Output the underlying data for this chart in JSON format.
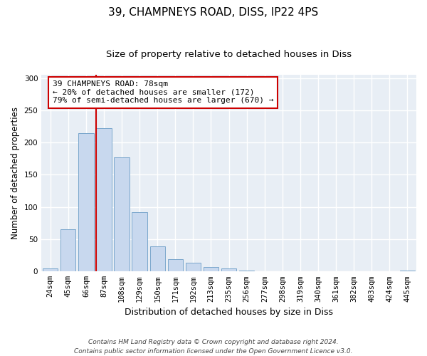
{
  "title": "39, CHAMPNEYS ROAD, DISS, IP22 4PS",
  "subtitle": "Size of property relative to detached houses in Diss",
  "xlabel": "Distribution of detached houses by size in Diss",
  "ylabel": "Number of detached properties",
  "bar_labels": [
    "24sqm",
    "45sqm",
    "66sqm",
    "87sqm",
    "108sqm",
    "129sqm",
    "150sqm",
    "171sqm",
    "192sqm",
    "213sqm",
    "235sqm",
    "256sqm",
    "277sqm",
    "298sqm",
    "319sqm",
    "340sqm",
    "361sqm",
    "382sqm",
    "403sqm",
    "424sqm",
    "445sqm"
  ],
  "bar_values": [
    5,
    65,
    215,
    222,
    177,
    92,
    39,
    19,
    14,
    7,
    5,
    1,
    0,
    0,
    0,
    0,
    0,
    0,
    0,
    0,
    1
  ],
  "bar_color": "#c8d8ee",
  "bar_edge_color": "#7ba7cc",
  "vline_color": "#cc0000",
  "annotation_text": "39 CHAMPNEYS ROAD: 78sqm\n← 20% of detached houses are smaller (172)\n79% of semi-detached houses are larger (670) →",
  "annotation_box_color": "#ffffff",
  "annotation_box_edge": "#cc0000",
  "ylim": [
    0,
    305
  ],
  "yticks": [
    0,
    50,
    100,
    150,
    200,
    250,
    300
  ],
  "background_color": "#ffffff",
  "plot_bg_color": "#e8eef5",
  "footer_text": "Contains HM Land Registry data © Crown copyright and database right 2024.\nContains public sector information licensed under the Open Government Licence v3.0.",
  "title_fontsize": 11,
  "subtitle_fontsize": 9.5,
  "xlabel_fontsize": 9,
  "ylabel_fontsize": 8.5,
  "tick_fontsize": 7.5,
  "footer_fontsize": 6.5
}
